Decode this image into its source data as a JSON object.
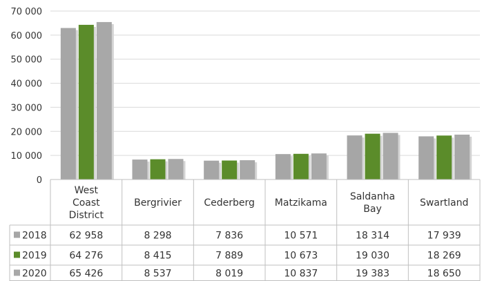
{
  "chart_data": {
    "type": "bar",
    "categories": [
      "West Coast District",
      "Bergrivier",
      "Cederberg",
      "Matzikama",
      "Saldanha Bay",
      "Swartland"
    ],
    "category_lines": [
      [
        "West",
        "Coast",
        "District"
      ],
      [
        "Bergrivier"
      ],
      [
        "Cederberg"
      ],
      [
        "Matzikama"
      ],
      [
        "Saldanha",
        "Bay"
      ],
      [
        "Swartland"
      ]
    ],
    "series": [
      {
        "name": "2018",
        "color": "#a6a6a6",
        "values": [
          62958,
          8298,
          7836,
          10571,
          18314,
          17939
        ],
        "labels": [
          "62 958",
          "8 298",
          "7 836",
          "10 571",
          "18 314",
          "17 939"
        ]
      },
      {
        "name": "2019",
        "color": "#5b8c2a",
        "values": [
          64276,
          8415,
          7889,
          10673,
          19030,
          18269
        ],
        "labels": [
          "64 276",
          "8 415",
          "7 889",
          "10 673",
          "19 030",
          "18 269"
        ]
      },
      {
        "name": "2020",
        "color": "#a8a8a8",
        "values": [
          65426,
          8537,
          8019,
          10837,
          19383,
          18650
        ],
        "labels": [
          "65 426",
          "8 537",
          "8 019",
          "10 837",
          "19 383",
          "18 650"
        ]
      }
    ],
    "y_ticks": [
      0,
      10000,
      20000,
      30000,
      40000,
      50000,
      60000,
      70000
    ],
    "y_tick_labels": [
      "0",
      "10 000",
      "20 000",
      "30 000",
      "40 000",
      "50 000",
      "60 000",
      "70 000"
    ],
    "ylim": [
      0,
      70000
    ],
    "grid": true,
    "legend": "data-table",
    "title": "",
    "xlabel": "",
    "ylabel": ""
  }
}
